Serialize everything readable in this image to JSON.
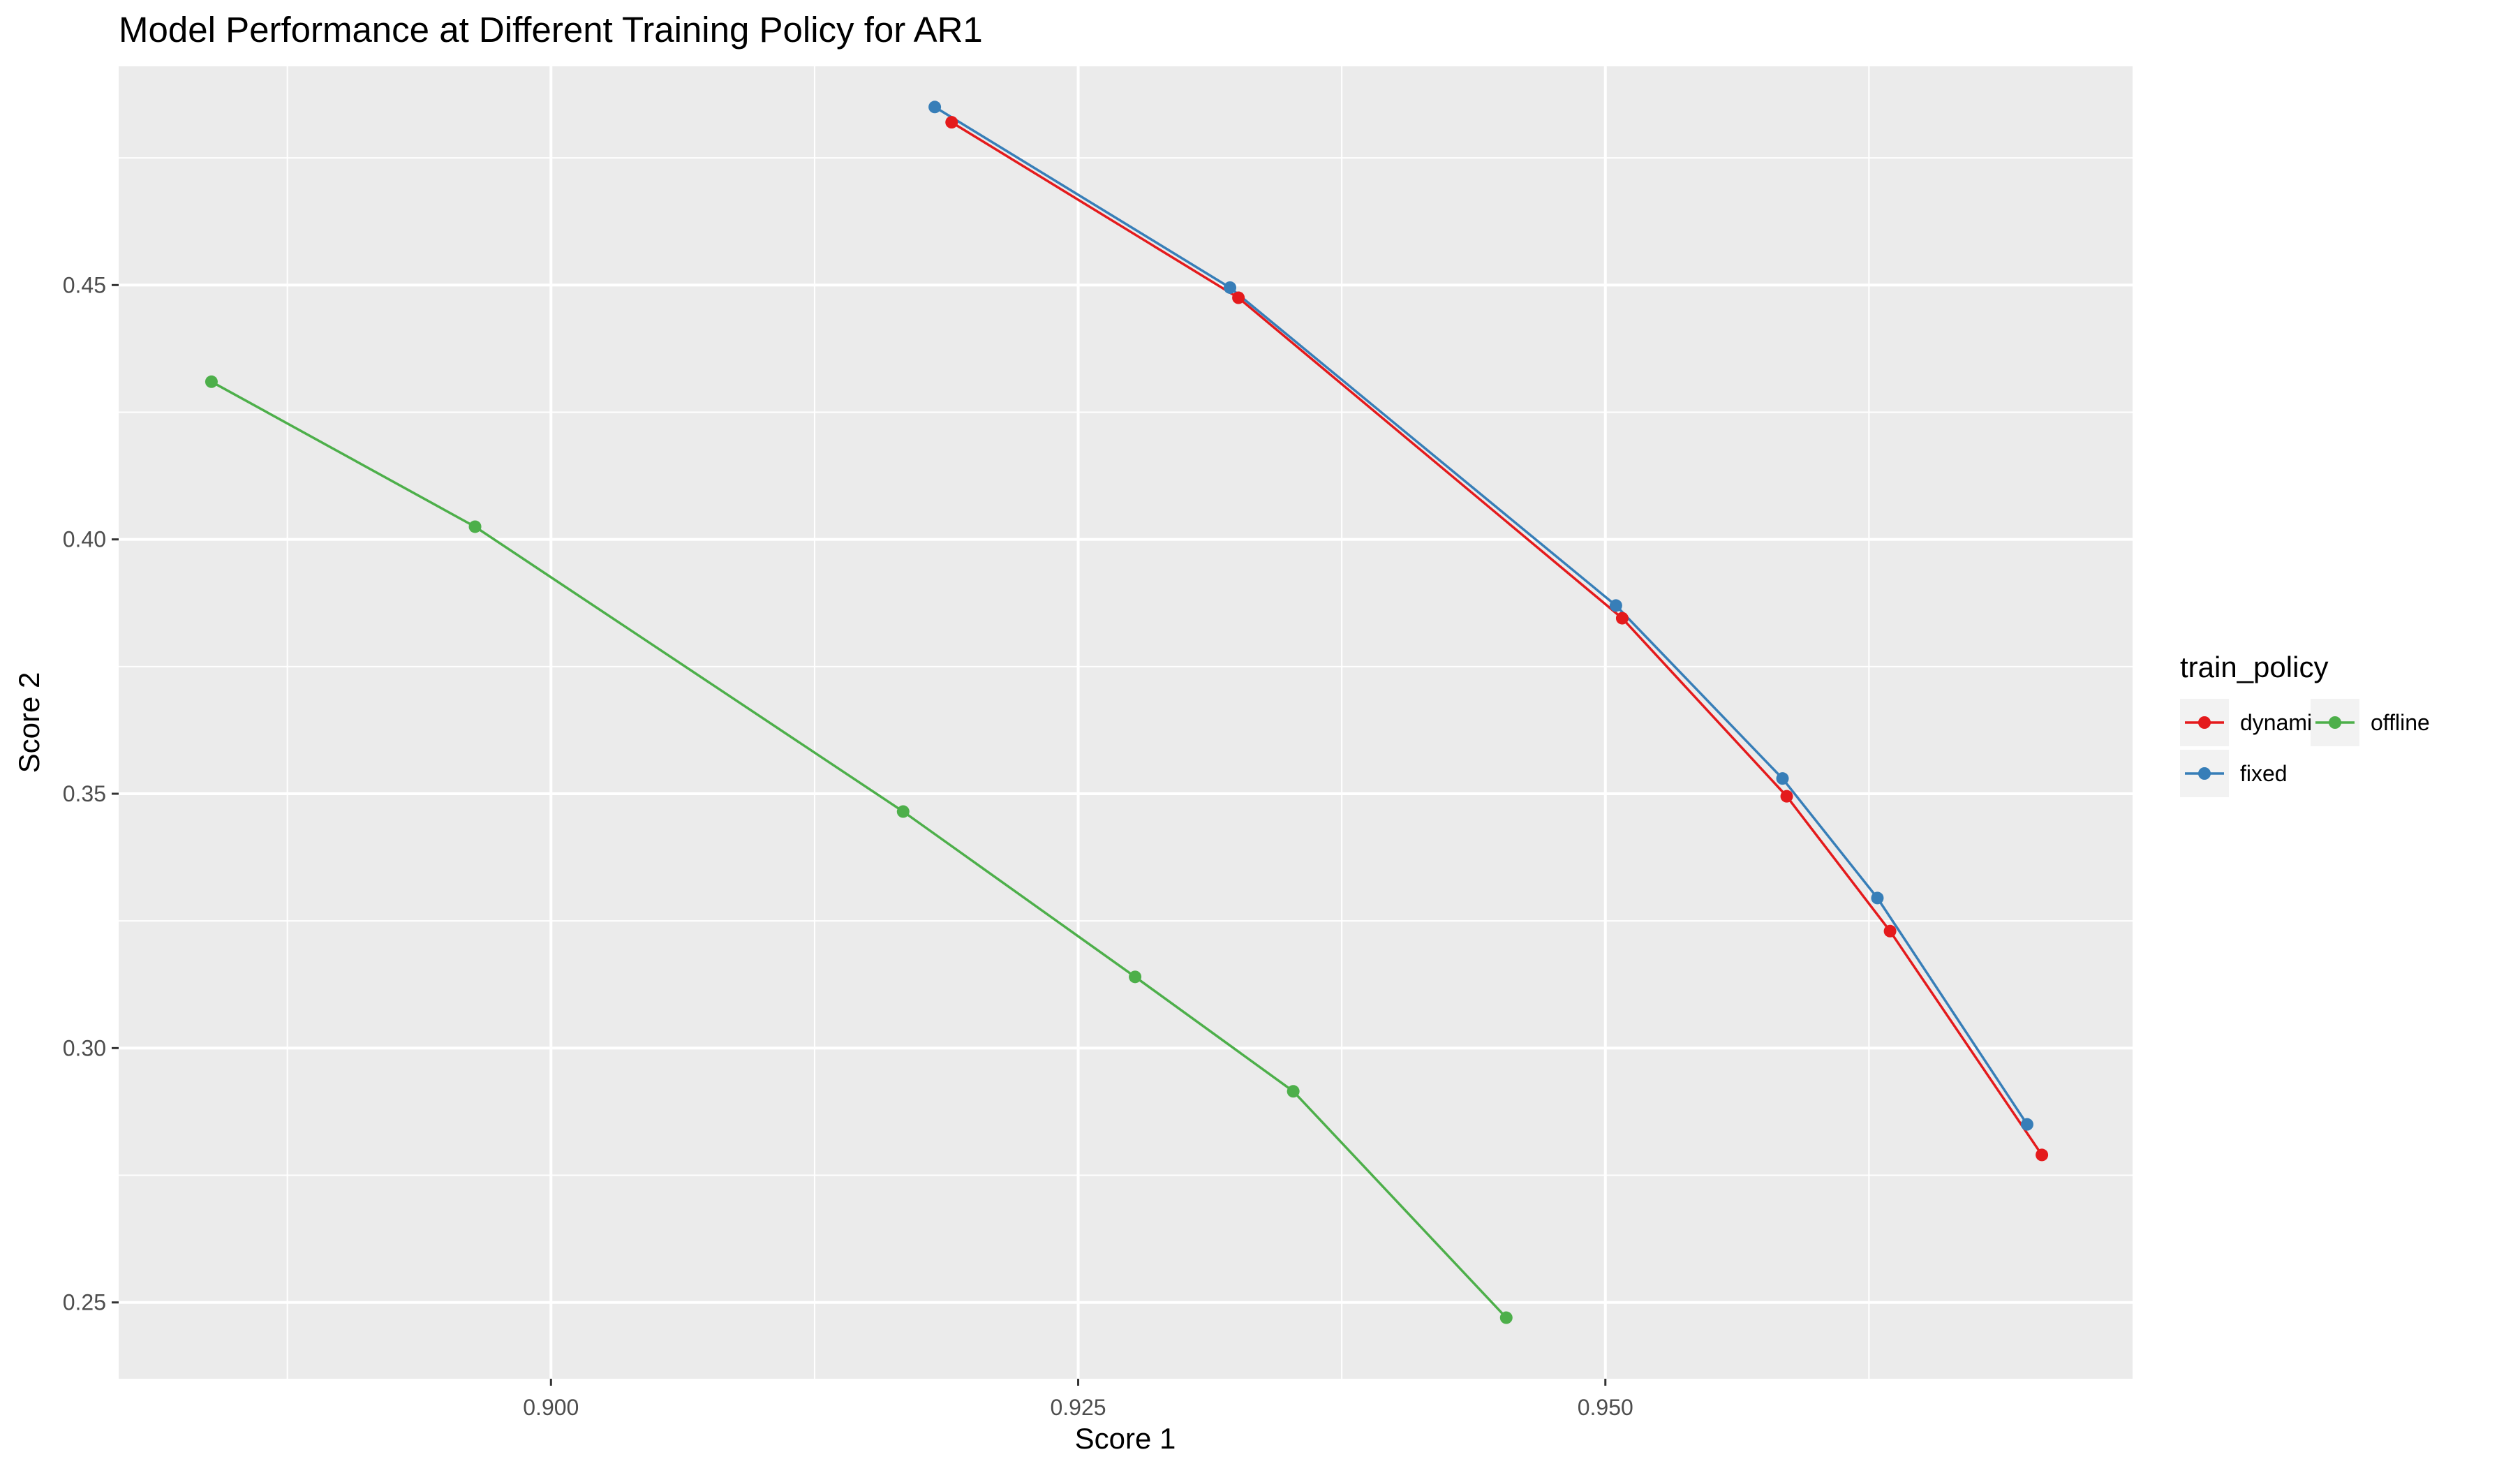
{
  "chart_data": {
    "type": "line",
    "title": "Model Performance at Different Training Policy for AR1",
    "xlabel": "Score 1",
    "ylabel": "Score 2",
    "xlim": [
      0.8795,
      0.975
    ],
    "ylim": [
      0.235,
      0.493
    ],
    "x_ticks": [
      0.9,
      0.925,
      0.95
    ],
    "x_tick_labels": [
      "0.900",
      "0.925",
      "0.950"
    ],
    "y_ticks": [
      0.25,
      0.3,
      0.35,
      0.4,
      0.45
    ],
    "y_tick_labels": [
      "0.25",
      "0.30",
      "0.35",
      "0.40",
      "0.45"
    ],
    "grid": true,
    "legend": {
      "title": "train_policy",
      "placement": "right",
      "entries": [
        "dynamic",
        "fixed",
        "offline"
      ]
    },
    "series": [
      {
        "name": "dynamic",
        "color": "#E41A1C",
        "points": [
          {
            "x": 0.919,
            "y": 0.482
          },
          {
            "x": 0.9326,
            "y": 0.4475
          },
          {
            "x": 0.9508,
            "y": 0.3845
          },
          {
            "x": 0.9586,
            "y": 0.3495
          },
          {
            "x": 0.9635,
            "y": 0.323
          },
          {
            "x": 0.9707,
            "y": 0.279
          }
        ]
      },
      {
        "name": "fixed",
        "color": "#377EB8",
        "points": [
          {
            "x": 0.9182,
            "y": 0.485
          },
          {
            "x": 0.9322,
            "y": 0.4495
          },
          {
            "x": 0.9505,
            "y": 0.387
          },
          {
            "x": 0.9584,
            "y": 0.353
          },
          {
            "x": 0.9629,
            "y": 0.3295
          },
          {
            "x": 0.97,
            "y": 0.285
          }
        ]
      },
      {
        "name": "offline",
        "color": "#4DAF4A",
        "points": [
          {
            "x": 0.8839,
            "y": 0.431
          },
          {
            "x": 0.8964,
            "y": 0.4025
          },
          {
            "x": 0.9167,
            "y": 0.3465
          },
          {
            "x": 0.9277,
            "y": 0.314
          },
          {
            "x": 0.9352,
            "y": 0.2915
          },
          {
            "x": 0.9453,
            "y": 0.247
          }
        ]
      }
    ]
  }
}
